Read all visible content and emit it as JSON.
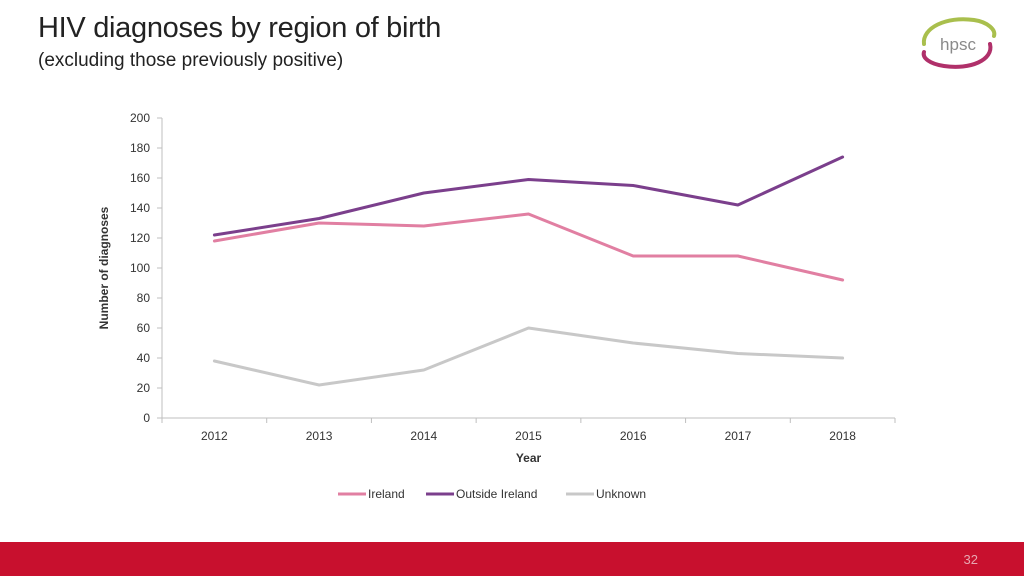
{
  "slide": {
    "title": "HIV diagnoses by region of birth",
    "subtitle": "(excluding those previously positive)",
    "logo_text": "hpsc",
    "page_number": "32",
    "footer_color": "#c8102e"
  },
  "chart_data": {
    "type": "line",
    "title": "",
    "xlabel": "Year",
    "ylabel": "Number of diagnoses",
    "x": [
      "2012",
      "2013",
      "2014",
      "2015",
      "2016",
      "2017",
      "2018"
    ],
    "ylim": [
      0,
      200
    ],
    "yticks": [
      0,
      20,
      40,
      60,
      80,
      100,
      120,
      140,
      160,
      180,
      200
    ],
    "grid": false,
    "legend_position": "bottom",
    "series": [
      {
        "name": "Ireland",
        "color": "#e17fa2",
        "values": [
          118,
          130,
          128,
          136,
          108,
          108,
          92
        ]
      },
      {
        "name": "Outside Ireland",
        "color": "#7b3f8c",
        "values": [
          122,
          133,
          150,
          159,
          155,
          142,
          174
        ]
      },
      {
        "name": "Unknown",
        "color": "#c8c8c8",
        "values": [
          38,
          22,
          32,
          60,
          50,
          43,
          40
        ]
      }
    ]
  }
}
